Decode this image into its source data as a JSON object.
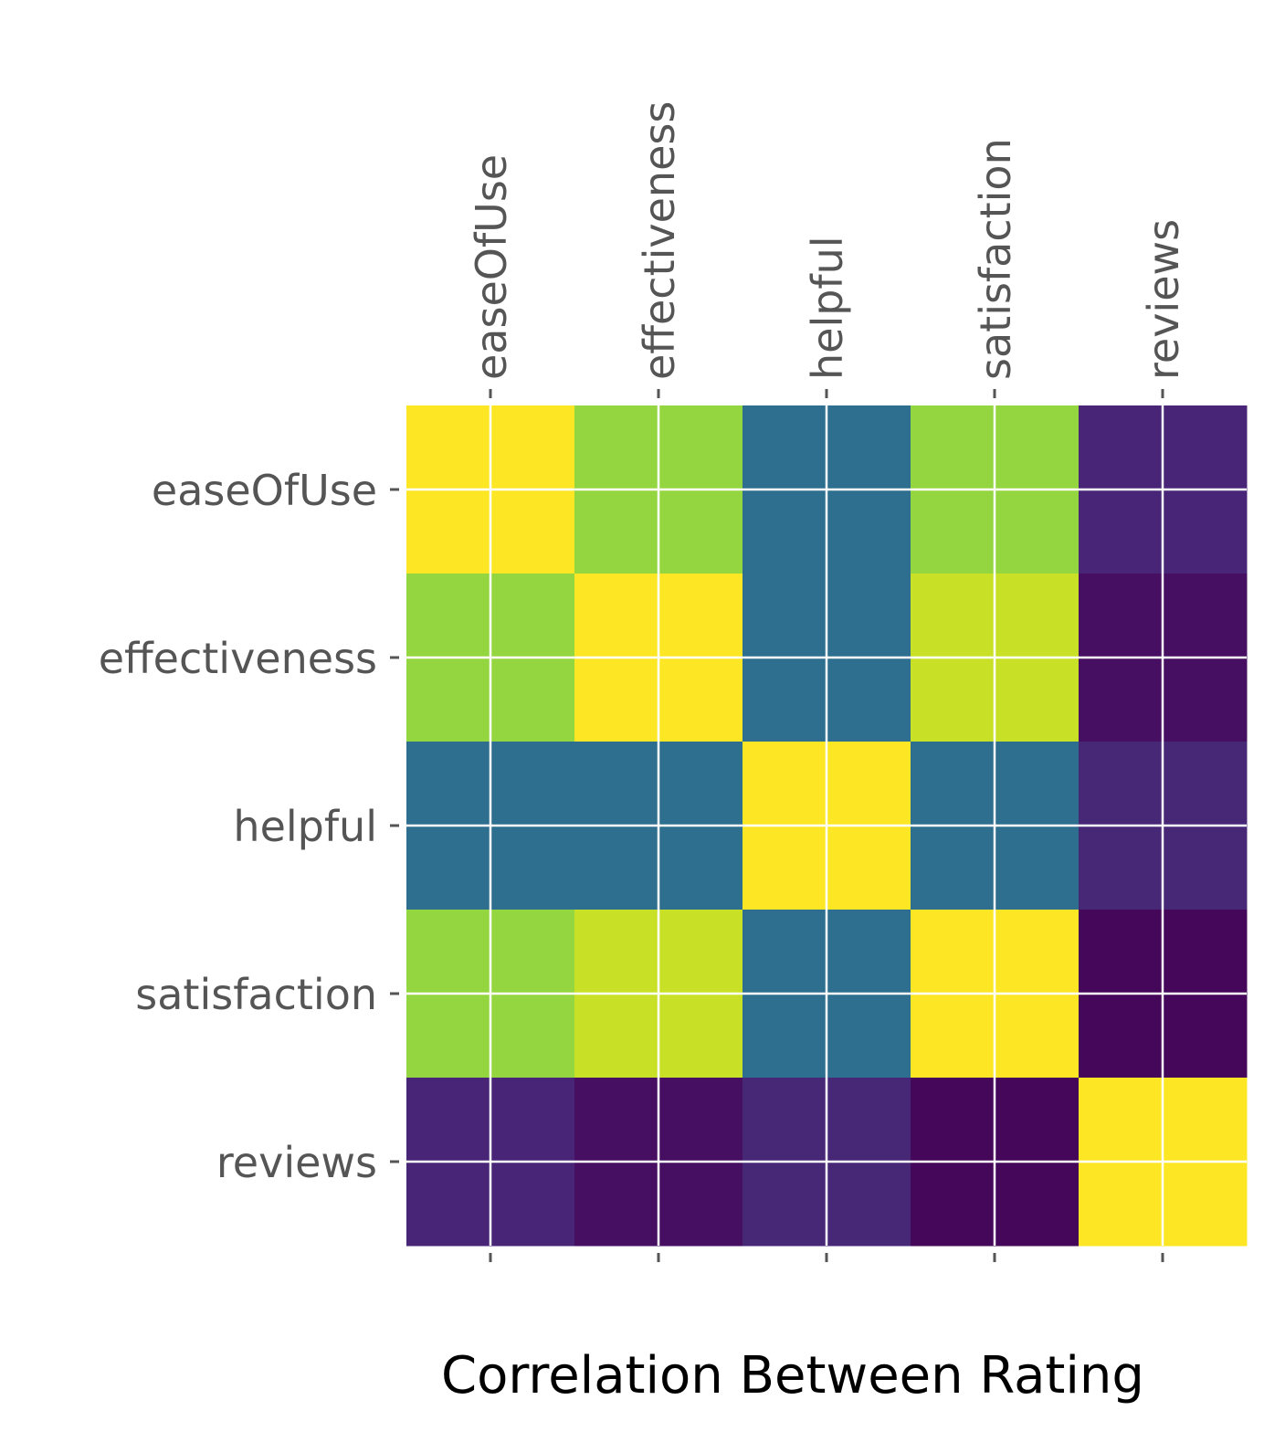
{
  "chart_data": {
    "type": "heatmap",
    "title": "Correlation Between Rating",
    "colormap": "viridis",
    "row_labels": [
      "easeOfUse",
      "effectiveness",
      "helpful",
      "satisfaction",
      "reviews"
    ],
    "col_labels": [
      "easeOfUse",
      "effectiveness",
      "helpful",
      "satisfaction",
      "reviews"
    ],
    "value_range": [
      0.0,
      1.0
    ],
    "values": [
      [
        1.0,
        0.9,
        0.45,
        0.9,
        0.13
      ],
      [
        0.9,
        1.0,
        0.45,
        0.95,
        0.05
      ],
      [
        0.45,
        0.45,
        1.0,
        0.45,
        0.14
      ],
      [
        0.9,
        0.95,
        0.45,
        1.0,
        0.02
      ],
      [
        0.13,
        0.05,
        0.14,
        0.02,
        1.0
      ]
    ],
    "x_tick_position": "top",
    "grid": true,
    "grid_color": "#ffffff",
    "colors": [
      "#fde725",
      "#bddf26",
      "#2a788e",
      "#e8e41b",
      "#472e7c",
      "#440a58",
      "#45307e",
      "#440154"
    ]
  }
}
